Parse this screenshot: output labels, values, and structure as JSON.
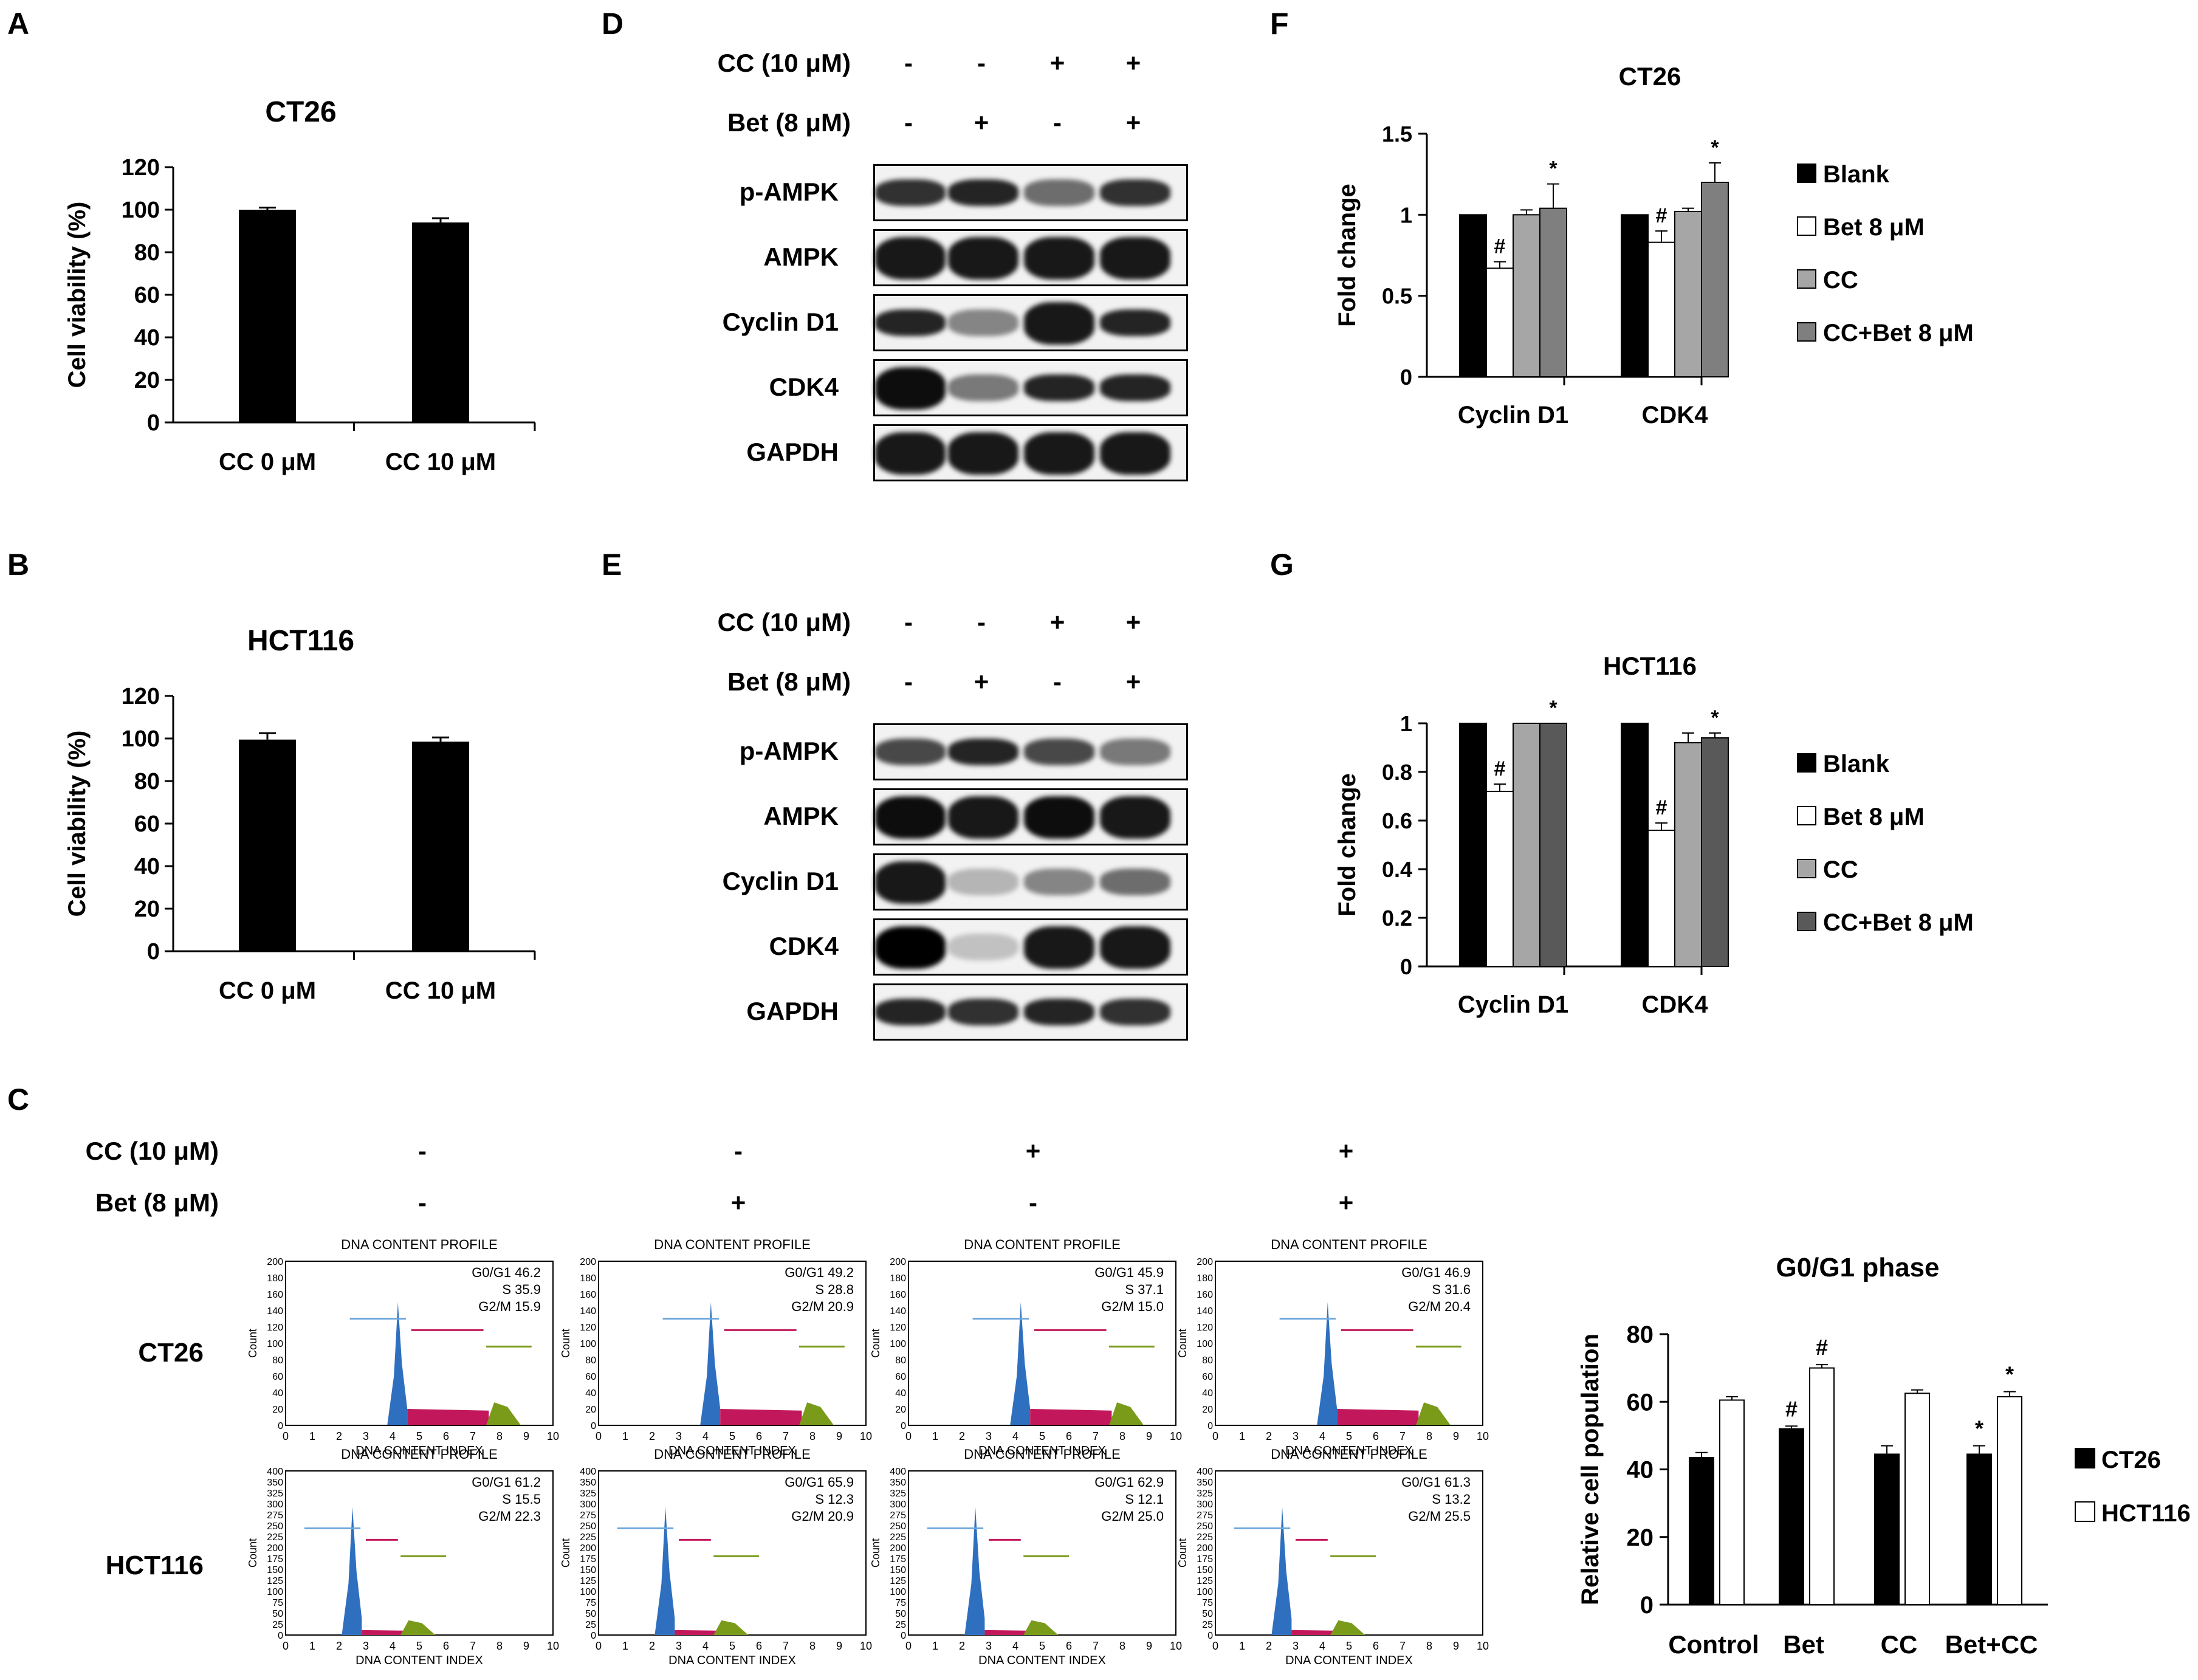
{
  "panels": {
    "A": "A",
    "B": "B",
    "C": "C",
    "D": "D",
    "E": "E",
    "F": "F",
    "G": "G"
  },
  "viability": [
    {
      "title": "CT26",
      "ylabel": "Cell viability (%)",
      "categories": [
        "CC 0 μM",
        "CC 10 μM"
      ],
      "values": [
        100,
        94
      ],
      "errors": [
        1,
        2
      ],
      "yticks": [
        "0",
        "20",
        "40",
        "60",
        "80",
        "100",
        "120"
      ]
    },
    {
      "title": "HCT116",
      "ylabel": "Cell viability (%)",
      "categories": [
        "CC 0 μM",
        "CC 10 μM"
      ],
      "values": [
        99.5,
        98.5
      ],
      "errors": [
        3,
        2
      ],
      "yticks": [
        "0",
        "20",
        "40",
        "60",
        "80",
        "100",
        "120"
      ]
    }
  ],
  "blots": {
    "treatments": [
      {
        "label": "CC (10 μM)",
        "signs": [
          "-",
          "-",
          "+",
          "+"
        ]
      },
      {
        "label": "Bet (8 μM)",
        "signs": [
          "-",
          "+",
          "-",
          "+"
        ]
      }
    ],
    "D": {
      "rows": [
        "p-AMPK",
        "AMPK",
        "Cyclin D1",
        "CDK4",
        "GAPDH"
      ]
    },
    "E": {
      "rows": [
        "p-AMPK",
        "AMPK",
        "Cyclin D1",
        "CDK4",
        "GAPDH"
      ]
    }
  },
  "fold": [
    {
      "title": "CT26",
      "ylabel": "Fold change",
      "groups": [
        "Cyclin D1",
        "CDK4"
      ],
      "yticks": [
        "0",
        "0.5",
        "1",
        "1.5"
      ],
      "series": [
        {
          "name": "Blank",
          "color": "#000000",
          "values": [
            1,
            1
          ],
          "errors": [
            0,
            0
          ],
          "marks": [
            "",
            ""
          ]
        },
        {
          "name": "Bet 8 μM",
          "color": "#ffffff",
          "values": [
            0.67,
            0.83
          ],
          "errors": [
            0.04,
            0.07
          ],
          "marks": [
            "#",
            "#"
          ]
        },
        {
          "name": "CC",
          "color": "#a6a6a6",
          "values": [
            1.0,
            1.02
          ],
          "errors": [
            0.03,
            0.02
          ],
          "marks": [
            "",
            ""
          ]
        },
        {
          "name": "CC+Bet 8 μM",
          "color": "#7f7f7f",
          "values": [
            1.04,
            1.2
          ],
          "errors": [
            0.15,
            0.12
          ],
          "marks": [
            "*",
            "*"
          ]
        }
      ]
    },
    {
      "title": "HCT116",
      "ylabel": "Fold change",
      "groups": [
        "Cyclin D1",
        "CDK4"
      ],
      "yticks": [
        "0",
        "0.2",
        "0.4",
        "0.6",
        "0.8",
        "1"
      ],
      "series": [
        {
          "name": "Blank",
          "color": "#000000",
          "values": [
            1,
            1
          ],
          "errors": [
            0,
            0
          ],
          "marks": [
            "",
            ""
          ]
        },
        {
          "name": "Bet 8 μM",
          "color": "#ffffff",
          "values": [
            0.72,
            0.56
          ],
          "errors": [
            0.03,
            0.03
          ],
          "marks": [
            "#",
            "#"
          ]
        },
        {
          "name": "CC",
          "color": "#a6a6a6",
          "values": [
            1.0,
            0.92
          ],
          "errors": [
            0,
            0.04
          ],
          "marks": [
            "",
            ""
          ]
        },
        {
          "name": "CC+Bet 8 μM",
          "color": "#595959",
          "values": [
            1.0,
            0.94
          ],
          "errors": [
            0,
            0.02
          ],
          "marks": [
            "*",
            "*"
          ]
        }
      ]
    }
  ],
  "flow": {
    "treatments": [
      {
        "label": "CC (10 μM)",
        "signs": [
          "-",
          "-",
          "+",
          "+"
        ]
      },
      {
        "label": "Bet (8 μM)",
        "signs": [
          "-",
          "+",
          "-",
          "+"
        ]
      }
    ],
    "rows": [
      "CT26",
      "HCT116"
    ],
    "title": "DNA CONTENT PROFILE",
    "xlabel": "DNA CONTENT INDEX",
    "ylabel": "Count",
    "xticks": [
      "0",
      "1",
      "2",
      "3",
      "4",
      "5",
      "6",
      "7",
      "8",
      "9",
      "10"
    ],
    "ct26_yticks": [
      "0",
      "20",
      "40",
      "60",
      "80",
      "100",
      "120",
      "140",
      "160",
      "180",
      "200"
    ],
    "hct_yticks": [
      "0",
      "25",
      "50",
      "75",
      "100",
      "125",
      "150",
      "175",
      "200",
      "225",
      "250",
      "275",
      "300",
      "325",
      "350",
      "400"
    ],
    "stats": [
      [
        {
          "g": "G0/G1 46.2",
          "s": "S 35.9",
          "m": "G2/M 15.9"
        },
        {
          "g": "G0/G1 49.2",
          "s": "S 28.8",
          "m": "G2/M 20.9"
        },
        {
          "g": "G0/G1 45.9",
          "s": "S 37.1",
          "m": "G2/M 15.0"
        },
        {
          "g": "G0/G1 46.9",
          "s": "S 31.6",
          "m": "G2/M 20.4"
        }
      ],
      [
        {
          "g": "G0/G1 61.2",
          "s": "S 15.5",
          "m": "G2/M 22.3"
        },
        {
          "g": "G0/G1 65.9",
          "s": "S 12.3",
          "m": "G2/M 20.9"
        },
        {
          "g": "G0/G1 62.9",
          "s": "S 12.1",
          "m": "G2/M 25.0"
        },
        {
          "g": "G0/G1 61.3",
          "s": "S 13.2",
          "m": "G2/M 25.5"
        }
      ]
    ]
  },
  "chart_data": [
    {
      "type": "bar",
      "title": "CT26",
      "categories": [
        "CC 0 μM",
        "CC 10 μM"
      ],
      "values": [
        100,
        94
      ],
      "ylabel": "Cell viability (%)",
      "ylim": [
        0,
        120
      ]
    },
    {
      "type": "bar",
      "title": "HCT116",
      "categories": [
        "CC 0 μM",
        "CC 10 μM"
      ],
      "values": [
        99.5,
        98.5
      ],
      "ylabel": "Cell viability (%)",
      "ylim": [
        0,
        120
      ]
    },
    {
      "type": "bar",
      "title": "CT26",
      "categories": [
        "Cyclin D1",
        "CDK4"
      ],
      "ylabel": "Fold change",
      "ylim": [
        0,
        1.5
      ],
      "series": [
        {
          "name": "Blank",
          "values": [
            1,
            1
          ]
        },
        {
          "name": "Bet 8 μM",
          "values": [
            0.67,
            0.83
          ]
        },
        {
          "name": "CC",
          "values": [
            1.0,
            1.02
          ]
        },
        {
          "name": "CC+Bet 8 μM",
          "values": [
            1.04,
            1.2
          ]
        }
      ]
    },
    {
      "type": "bar",
      "title": "HCT116",
      "categories": [
        "Cyclin D1",
        "CDK4"
      ],
      "ylabel": "Fold change",
      "ylim": [
        0,
        1
      ],
      "series": [
        {
          "name": "Blank",
          "values": [
            1,
            1
          ]
        },
        {
          "name": "Bet 8 μM",
          "values": [
            0.72,
            0.56
          ]
        },
        {
          "name": "CC",
          "values": [
            1.0,
            0.92
          ]
        },
        {
          "name": "CC+Bet 8 μM",
          "values": [
            1.0,
            0.94
          ]
        }
      ]
    },
    {
      "type": "bar",
      "title": "G0/G1 phase",
      "categories": [
        "Control",
        "Bet",
        "CC",
        "Bet+CC"
      ],
      "ylabel": "Relative cell population",
      "ylim": [
        0,
        80
      ],
      "series": [
        {
          "name": "CT26",
          "values": [
            43.5,
            52,
            44.5,
            44.5
          ],
          "errors": [
            1.5,
            0.8,
            2.5,
            2.5
          ],
          "marks": [
            "",
            "#",
            "",
            "*"
          ]
        },
        {
          "name": "HCT116",
          "values": [
            60.5,
            70,
            62.5,
            61.5
          ],
          "errors": [
            1,
            1,
            1,
            1.5
          ],
          "marks": [
            "",
            "#",
            "",
            "*"
          ]
        }
      ],
      "yticks": [
        "0",
        "20",
        "40",
        "60",
        "80"
      ]
    }
  ]
}
